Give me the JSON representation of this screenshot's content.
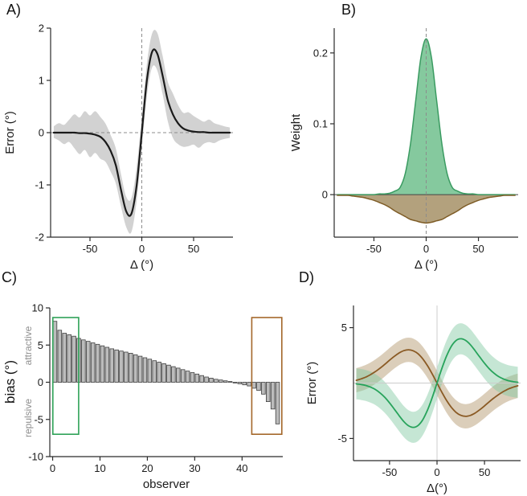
{
  "panel_labels": {
    "a": "A)",
    "b": "B)",
    "c": "C)",
    "d": "D)"
  },
  "side_labels": {
    "ylabel": "bias (°)",
    "top": "attractive",
    "bottom": "repulsive"
  },
  "chart_data": [
    {
      "id": "A",
      "name": "group-average-error-curve",
      "type": "line",
      "xlabel": "Δ (°)",
      "ylabel": "Error (°)",
      "xlim": [
        -88,
        88
      ],
      "ylim": [
        -2,
        2
      ],
      "xticks": [
        -50,
        0,
        50
      ],
      "yticks": [
        -2,
        -1,
        0,
        1,
        2
      ],
      "grid": false,
      "reflines": [
        {
          "axis": "h",
          "value": 0,
          "dash": true,
          "color": "#8c8c8c"
        },
        {
          "axis": "v",
          "value": 0,
          "dash": true,
          "color": "#8c8c8c"
        }
      ],
      "series": [
        {
          "name": "mean-error",
          "color": "#1a1a1a",
          "width": 2.2,
          "band_color": "rgba(173,173,173,0.55)",
          "x": [
            -85,
            -80,
            -75,
            -70,
            -65,
            -60,
            -55,
            -50,
            -45,
            -40,
            -35,
            -30,
            -25,
            -20,
            -15,
            -10,
            -5,
            0,
            5,
            10,
            15,
            20,
            25,
            30,
            35,
            40,
            45,
            50,
            55,
            60,
            65,
            70,
            75,
            80,
            85
          ],
          "y": [
            0,
            0,
            0,
            0,
            0,
            -0.01,
            -0.01,
            -0.02,
            -0.04,
            -0.08,
            -0.18,
            -0.35,
            -0.63,
            -1.1,
            -1.51,
            -1.55,
            -1.01,
            0,
            1.01,
            1.55,
            1.51,
            1.1,
            0.63,
            0.35,
            0.18,
            0.08,
            0.04,
            0.02,
            0.01,
            0.01,
            0,
            0,
            0,
            0,
            0
          ],
          "upper": [
            0.12,
            0.18,
            0.15,
            0.25,
            0.35,
            0.29,
            0.41,
            0.33,
            0.41,
            0.3,
            0.17,
            -0.05,
            -0.31,
            -0.8,
            -1.23,
            -1.25,
            -0.66,
            0.3,
            1.33,
            1.9,
            1.91,
            1.48,
            0.98,
            0.75,
            0.53,
            0.38,
            0.39,
            0.32,
            0.26,
            0.21,
            0.25,
            0.18,
            0.15,
            0.12,
            0.1
          ],
          "lower": [
            -0.1,
            -0.15,
            -0.22,
            -0.18,
            -0.3,
            -0.41,
            -0.33,
            -0.47,
            -0.39,
            -0.5,
            -0.56,
            -0.75,
            -0.98,
            -1.42,
            -1.81,
            -1.9,
            -1.31,
            -0.3,
            0.71,
            1.25,
            1.19,
            0.75,
            0.23,
            -0.1,
            -0.22,
            -0.27,
            -0.26,
            -0.23,
            -0.29,
            -0.21,
            -0.18,
            -0.2,
            -0.15,
            -0.12,
            -0.1
          ]
        }
      ]
    },
    {
      "id": "B",
      "name": "model-weight-profiles",
      "type": "line",
      "xlabel": "Δ (°)",
      "ylabel": "Weight",
      "xlim": [
        -88,
        88
      ],
      "ylim": [
        -0.06,
        0.235
      ],
      "xticks": [
        -50,
        0,
        50
      ],
      "yticks": [
        0,
        0.1,
        0.2
      ],
      "grid": false,
      "reflines": [
        {
          "axis": "h",
          "value": 0,
          "dash": false,
          "color": "#444444"
        },
        {
          "axis": "v",
          "value": 0,
          "dash": true,
          "color": "#8c8c8c"
        }
      ],
      "series": [
        {
          "name": "attractive-weight",
          "color": "#3a9b61",
          "width": 1.5,
          "fill": "#85c99e",
          "x": [
            -85,
            -80,
            -75,
            -70,
            -65,
            -60,
            -55,
            -50,
            -45,
            -40,
            -35,
            -30,
            -25,
            -20,
            -15,
            -10,
            -5,
            0,
            5,
            10,
            15,
            20,
            25,
            30,
            35,
            40,
            45,
            50,
            55,
            60,
            65,
            70,
            75,
            80,
            85
          ],
          "y": [
            0,
            0,
            0,
            0,
            0,
            0,
            0,
            0,
            0.001,
            0.001,
            0.002,
            0.005,
            0.01,
            0.03,
            0.072,
            0.133,
            0.194,
            0.22,
            0.194,
            0.133,
            0.072,
            0.03,
            0.01,
            0.005,
            0.002,
            0.001,
            0.001,
            0,
            0,
            0,
            0,
            0,
            0,
            0,
            0
          ]
        },
        {
          "name": "repulsive-weight",
          "color": "#7e5c26",
          "width": 1.5,
          "fill": "#b3a17d",
          "x": [
            -85,
            -80,
            -75,
            -70,
            -65,
            -60,
            -55,
            -50,
            -45,
            -40,
            -35,
            -30,
            -25,
            -20,
            -15,
            -10,
            -5,
            0,
            5,
            10,
            15,
            20,
            25,
            30,
            35,
            40,
            45,
            50,
            55,
            60,
            65,
            70,
            75,
            80,
            85
          ],
          "y": [
            -0.001,
            -0.001,
            -0.001,
            -0.002,
            -0.003,
            -0.004,
            -0.006,
            -0.008,
            -0.011,
            -0.014,
            -0.018,
            -0.023,
            -0.027,
            -0.031,
            -0.035,
            -0.037,
            -0.039,
            -0.04,
            -0.039,
            -0.037,
            -0.035,
            -0.031,
            -0.027,
            -0.023,
            -0.018,
            -0.014,
            -0.011,
            -0.008,
            -0.006,
            -0.004,
            -0.003,
            -0.002,
            -0.001,
            -0.001,
            -0.001
          ]
        }
      ]
    },
    {
      "id": "C",
      "name": "per-observer-bias",
      "type": "bar",
      "xlabel": "observer",
      "ylabel": "",
      "xlim": [
        -0.6,
        48.6
      ],
      "ylim": [
        -10,
        10
      ],
      "xticks": [
        0,
        10,
        20,
        30,
        40
      ],
      "yticks": [
        -10,
        -5,
        0,
        5,
        10
      ],
      "bar_fill": "#bcbcbc",
      "bar_stroke": "#3f3f3f",
      "values": [
        8.2,
        7.0,
        6.6,
        6.4,
        6.2,
        5.9,
        5.7,
        5.5,
        5.3,
        5.1,
        4.9,
        4.7,
        4.5,
        4.35,
        4.2,
        4.05,
        3.9,
        3.7,
        3.5,
        3.3,
        3.1,
        2.9,
        2.7,
        2.5,
        2.3,
        2.1,
        1.9,
        1.7,
        1.5,
        1.3,
        1.1,
        0.9,
        0.7,
        0.55,
        0.4,
        0.3,
        0.2,
        0.1,
        -0.1,
        -0.2,
        -0.35,
        -0.5,
        -0.8,
        -1.1,
        -1.6,
        -2.6,
        -3.6,
        -5.6
      ],
      "highlights": [
        {
          "name": "attractive-observers-box",
          "from": 0.05,
          "to": 5.5,
          "y0": -7,
          "y1": 8.7,
          "color": "#2fa258"
        },
        {
          "name": "repulsive-observers-box",
          "from": 42.05,
          "to": 48.4,
          "y0": -7,
          "y1": 8.7,
          "color": "#a4672a"
        }
      ]
    },
    {
      "id": "D",
      "name": "subgroup-error-curves",
      "type": "line",
      "xlabel": "Δ(°)",
      "ylabel": "Error (°)",
      "xlim": [
        -88,
        88
      ],
      "ylim": [
        -7,
        7
      ],
      "xticks": [
        -50,
        0,
        50
      ],
      "yticks": [
        -5,
        5
      ],
      "grid": false,
      "reflines": [
        {
          "axis": "h",
          "value": 0,
          "dash": false,
          "color": "#cccccc"
        },
        {
          "axis": "v",
          "value": 0,
          "dash": false,
          "color": "#cccccc"
        }
      ],
      "series": [
        {
          "name": "repulsive-group-error",
          "color": "#8a5a24",
          "width": 1.8,
          "band": 1.1,
          "band_color": "rgba(184,158,118,0.5)",
          "x": [
            -85,
            -80,
            -75,
            -70,
            -65,
            -60,
            -55,
            -50,
            -45,
            -40,
            -35,
            -30,
            -25,
            -20,
            -15,
            -10,
            -5,
            0,
            5,
            10,
            15,
            20,
            25,
            30,
            35,
            40,
            45,
            50,
            55,
            60,
            65,
            70,
            75,
            80,
            85
          ],
          "y": [
            0.25,
            0.38,
            0.54,
            0.76,
            1.03,
            1.34,
            1.69,
            2.06,
            2.41,
            2.71,
            2.92,
            3.0,
            2.91,
            2.64,
            2.18,
            1.56,
            0.81,
            0,
            -0.81,
            -1.56,
            -2.18,
            -2.64,
            -2.91,
            -3.0,
            -2.92,
            -2.71,
            -2.41,
            -2.06,
            -1.69,
            -1.34,
            -1.03,
            -0.76,
            -0.54,
            -0.38,
            -0.25
          ]
        },
        {
          "name": "attractive-group-error",
          "color": "#27a35b",
          "width": 1.8,
          "band": 1.4,
          "band_color": "rgba(126,199,159,0.45)",
          "x": [
            -85,
            -80,
            -75,
            -70,
            -65,
            -60,
            -55,
            -50,
            -45,
            -40,
            -35,
            -30,
            -25,
            -20,
            -15,
            -10,
            -5,
            0,
            5,
            10,
            15,
            20,
            25,
            30,
            35,
            40,
            45,
            50,
            55,
            60,
            65,
            70,
            75,
            80,
            85
          ],
          "y": [
            -0.07,
            -0.13,
            -0.22,
            -0.37,
            -0.58,
            -0.89,
            -1.29,
            -1.79,
            -2.35,
            -2.93,
            -3.47,
            -3.85,
            -4.0,
            -3.83,
            -3.31,
            -2.43,
            -1.29,
            0,
            1.29,
            2.43,
            3.31,
            3.83,
            4.0,
            3.85,
            3.47,
            2.93,
            2.35,
            1.79,
            1.29,
            0.89,
            0.58,
            0.37,
            0.22,
            0.13,
            0.07
          ]
        }
      ]
    }
  ]
}
